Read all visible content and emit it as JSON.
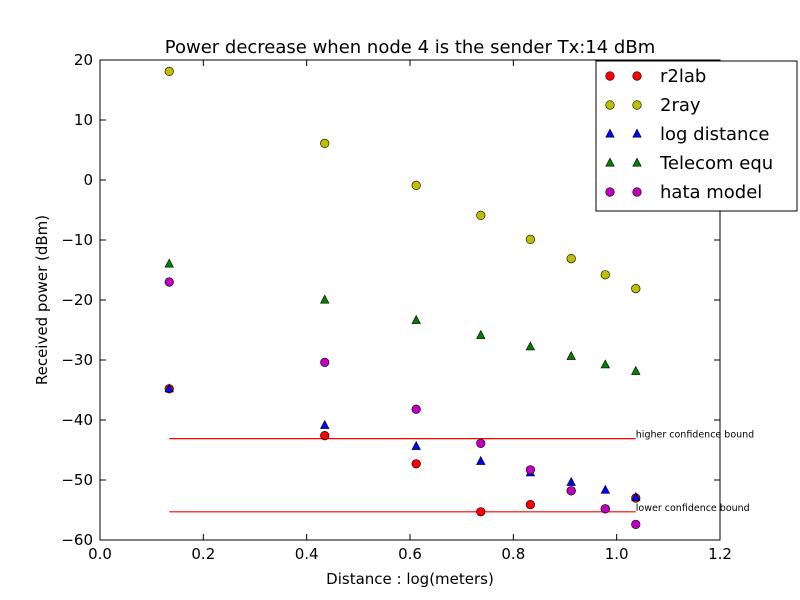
{
  "chart_data": {
    "type": "scatter",
    "title": "Power decrease when node 4 is the sender Tx:14 dBm",
    "xlabel": "Distance : log(meters)",
    "ylabel": "Received power (dBm)",
    "xlim": [
      0.0,
      1.2
    ],
    "ylim": [
      -60,
      20
    ],
    "xticks": [
      0.0,
      0.2,
      0.4,
      0.6,
      0.8,
      1.0,
      1.2
    ],
    "xtick_labels": [
      "0.0",
      "0.2",
      "0.4",
      "0.6",
      "0.8",
      "1.0",
      "1.2"
    ],
    "yticks": [
      20,
      10,
      0,
      -10,
      -20,
      -30,
      -40,
      -50,
      -60
    ],
    "ytick_labels": [
      "20",
      "10",
      "0",
      "−10",
      "−20",
      "−30",
      "−40",
      "−50",
      "−60"
    ],
    "grid": false,
    "legend_position": "top-right",
    "x": [
      0.134,
      0.435,
      0.612,
      0.737,
      0.833,
      0.912,
      0.978,
      1.037
    ],
    "series": [
      {
        "name": "r2lab",
        "marker": "circle",
        "color": "#ff0000",
        "values": [
          -34.8,
          -42.6,
          -47.3,
          -55.3,
          -54.1,
          -51.8,
          -54.8,
          -53.0
        ]
      },
      {
        "name": "2ray",
        "marker": "circle",
        "color": "#bfbf00",
        "values": [
          18.1,
          6.1,
          -0.9,
          -5.9,
          -9.9,
          -13.1,
          -15.8,
          -18.1
        ]
      },
      {
        "name": "log distance",
        "marker": "triangle",
        "color": "#0000ff",
        "values": [
          -34.8,
          -40.9,
          -44.4,
          -46.9,
          -48.8,
          -50.4,
          -51.7,
          -52.9
        ]
      },
      {
        "name": "Telecom equ",
        "marker": "triangle",
        "color": "#008000",
        "values": [
          -14.0,
          -20.0,
          -23.4,
          -25.9,
          -27.8,
          -29.4,
          -30.8,
          -31.9
        ]
      },
      {
        "name": "hata model",
        "marker": "circle",
        "color": "#bf00bf",
        "values": [
          -17.0,
          -30.4,
          -38.2,
          -43.9,
          -48.3,
          -51.8,
          -54.8,
          -57.4
        ]
      }
    ],
    "reference_lines": [
      {
        "label": "higher confidence bound",
        "y": -43.1,
        "x_start": 0.134,
        "x_end": 1.037,
        "color": "#ff0000"
      },
      {
        "label": "lower confidence bound",
        "y": -55.3,
        "x_start": 0.134,
        "x_end": 1.037,
        "color": "#ff0000"
      }
    ]
  }
}
